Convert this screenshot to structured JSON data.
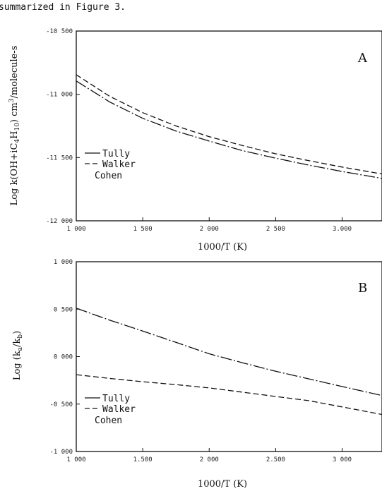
{
  "top_text": "summarized in Figure 3.",
  "chart_data": [
    {
      "type": "line",
      "panel": "A",
      "xlabel": "1000/T (K)",
      "ylabel": "Log k(OH+iC4H10) cm3/molecule-s",
      "xlim": [
        1000,
        3300
      ],
      "ylim": [
        -12000,
        -10500
      ],
      "x_ticks": [
        1000,
        1500,
        2000,
        2500,
        3000
      ],
      "x_tick_labels": [
        "1 000",
        "1 500",
        "2 000",
        "2 500",
        "3.000"
      ],
      "y_ticks": [
        -10500,
        -11000,
        -11500,
        -12000
      ],
      "y_tick_labels": [
        "-10 500",
        "-11 000",
        "-11 500",
        "-12 000"
      ],
      "legend": [
        "Tully",
        "Walker",
        "Cohen"
      ],
      "legend_position": "bottom-left",
      "series": [
        {
          "name": "Tully",
          "style": "dash-dot",
          "x": [
            1000,
            1250,
            1500,
            1750,
            2000,
            2250,
            2500,
            2750,
            3000,
            3300
          ],
          "y": [
            -10895,
            -11060,
            -11190,
            -11290,
            -11370,
            -11445,
            -11505,
            -11560,
            -11610,
            -11665
          ]
        },
        {
          "name": "Walker",
          "style": "dashed",
          "x": [
            1000,
            1250,
            1500,
            1750,
            2000,
            2250,
            2500,
            2750,
            3000,
            3300
          ],
          "y": [
            -10845,
            -11015,
            -11145,
            -11250,
            -11335,
            -11405,
            -11470,
            -11525,
            -11575,
            -11630
          ]
        }
      ]
    },
    {
      "type": "line",
      "panel": "B",
      "xlabel": "1000/T (K)",
      "ylabel": "Log (ka/kb)",
      "xlim": [
        1000,
        3300
      ],
      "ylim": [
        -1000,
        1000
      ],
      "x_ticks": [
        1000,
        1500,
        2000,
        2500,
        3000
      ],
      "x_tick_labels": [
        "1 000",
        "1.500",
        "2 000",
        "2.500",
        "3 000"
      ],
      "y_ticks": [
        1000,
        500,
        0,
        -500,
        -1000
      ],
      "y_tick_labels": [
        "1 000",
        "0 500",
        "0 000",
        "-0 500",
        "-1 000"
      ],
      "legend": [
        "Tully",
        "Walker",
        "Cohen"
      ],
      "legend_position": "bottom-left",
      "series": [
        {
          "name": "Tully",
          "style": "dash-dot",
          "x": [
            1000,
            1250,
            1500,
            1750,
            2000,
            2250,
            2500,
            2750,
            3000,
            3300
          ],
          "y": [
            510,
            385,
            270,
            150,
            30,
            -65,
            -155,
            -235,
            -315,
            -410
          ]
        },
        {
          "name": "Walker",
          "style": "dashed",
          "x": [
            1000,
            1250,
            1500,
            1750,
            2000,
            2250,
            2500,
            2750,
            3000,
            3300
          ],
          "y": [
            -190,
            -230,
            -265,
            -295,
            -330,
            -375,
            -420,
            -465,
            -530,
            -610
          ]
        }
      ]
    }
  ]
}
